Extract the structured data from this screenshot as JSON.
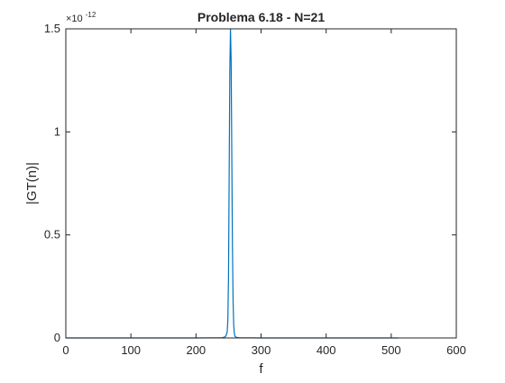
{
  "chart_data": {
    "type": "line",
    "title": "Problema 6.18 - N=21",
    "xlabel": "f",
    "ylabel": "|GT(n)|",
    "exponent_base": "×10",
    "exponent_power": "-12",
    "xlim": [
      0,
      600
    ],
    "ylim": [
      0,
      1.5
    ],
    "xticks": [
      0,
      100,
      200,
      300,
      400,
      500,
      600
    ],
    "yticks": [
      0,
      0.5,
      1,
      1.5
    ],
    "ytick_labels": [
      "0",
      "0.5",
      "1",
      "1.5"
    ],
    "grid": false,
    "line_color": "#0072bd",
    "series": [
      {
        "x": [
          0,
          100,
          200,
          240,
          244,
          246,
          248,
          249,
          250,
          251,
          252,
          253,
          254,
          255,
          256,
          257,
          258,
          259,
          260,
          262,
          266,
          300,
          400,
          500,
          511
        ],
        "y": [
          0,
          0,
          0,
          0.001,
          0.004,
          0.01,
          0.03,
          0.09,
          0.3,
          0.8,
          1.3,
          1.5,
          1.35,
          0.9,
          0.45,
          0.18,
          0.06,
          0.02,
          0.008,
          0.003,
          0.001,
          0,
          0,
          0,
          0
        ]
      }
    ]
  }
}
